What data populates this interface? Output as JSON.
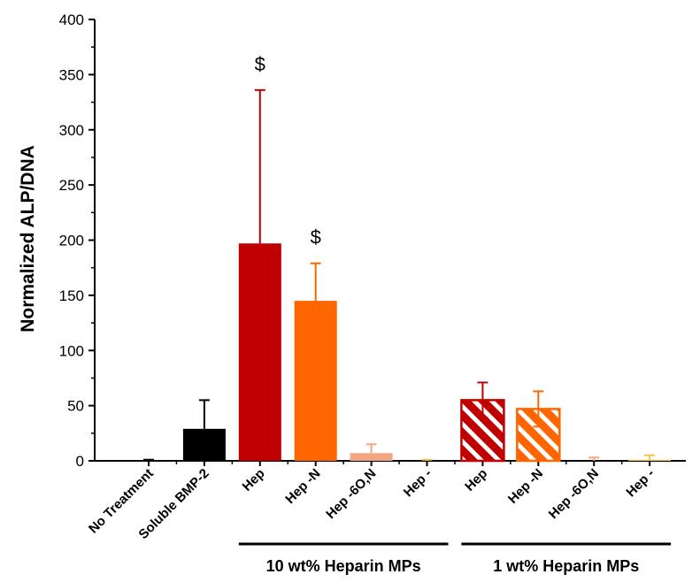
{
  "chart_data": {
    "type": "bar",
    "ylabel": "Normalized ALP/DNA",
    "xlabel": "",
    "ylim": [
      0,
      400
    ],
    "yticks": [
      0,
      50,
      100,
      150,
      200,
      250,
      300,
      350,
      400
    ],
    "grid": false,
    "categories": [
      "No Treatment",
      "Soluble BMP-2",
      "Hep",
      "Hep -N",
      "Hep -6O,N",
      "Hep -",
      "Hep",
      "Hep -N",
      "Hep -6O,N",
      "Hep -"
    ],
    "values": [
      0,
      29,
      197,
      145,
      7,
      0,
      55,
      47,
      0,
      1
    ],
    "errors": [
      1,
      26,
      139,
      34,
      8,
      1,
      16,
      16,
      3,
      4
    ],
    "colors": [
      "#000000",
      "#000000",
      "#c00000",
      "#ff6600",
      "#f4a582",
      "#f4c542",
      "#c00000",
      "#ff6600",
      "#f4a582",
      "#f4c542"
    ],
    "hatched": [
      false,
      false,
      false,
      false,
      false,
      false,
      true,
      true,
      false,
      false
    ],
    "annotations": [
      {
        "category_index": 2,
        "text": "$"
      },
      {
        "category_index": 3,
        "text": "$"
      }
    ],
    "groups": [
      {
        "label": "10 wt% Heparin MPs",
        "from_index": 2,
        "to_index": 5
      },
      {
        "label": "1 wt% Heparin MPs",
        "from_index": 6,
        "to_index": 9
      }
    ]
  }
}
